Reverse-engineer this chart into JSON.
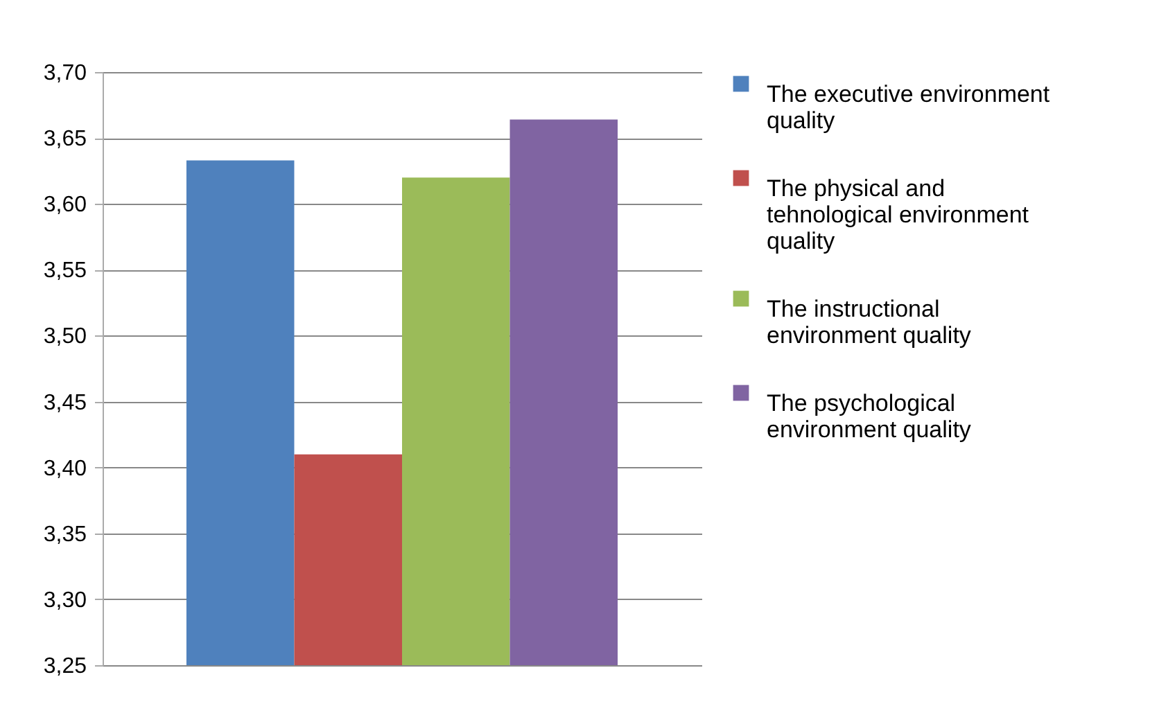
{
  "chart_data": {
    "type": "bar",
    "categories": [
      null
    ],
    "series": [
      {
        "name": "The executive environment quality",
        "color": "#4f81bd",
        "values": [
          3.633
        ]
      },
      {
        "name": "The physical and tehnological environment quality",
        "color": "#c0504d",
        "values": [
          3.41
        ]
      },
      {
        "name": "The instructional environment quality",
        "color": "#9bbb59",
        "values": [
          3.62
        ]
      },
      {
        "name": "The psychological environment quality",
        "color": "#8064a2",
        "values": [
          3.664
        ]
      }
    ],
    "ylim": [
      3.25,
      3.7
    ],
    "yticks": [
      {
        "value": 3.25,
        "label": "3,25"
      },
      {
        "value": 3.3,
        "label": "3,30"
      },
      {
        "value": 3.35,
        "label": "3,35"
      },
      {
        "value": 3.4,
        "label": "3,40"
      },
      {
        "value": 3.45,
        "label": "3,45"
      },
      {
        "value": 3.5,
        "label": "3,50"
      },
      {
        "value": 3.55,
        "label": "3,55"
      },
      {
        "value": 3.6,
        "label": "3,60"
      },
      {
        "value": 3.65,
        "label": "3,65"
      },
      {
        "value": 3.7,
        "label": "3,70"
      }
    ],
    "grid": "y",
    "legend": "right",
    "tick_labels": "y"
  }
}
